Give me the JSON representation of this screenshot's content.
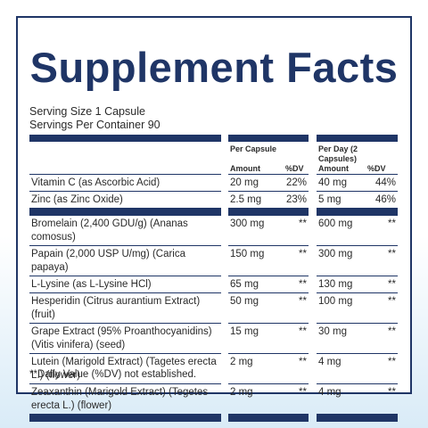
{
  "panel": {
    "title": "Supplement Facts",
    "serving_size": "Serving Size 1 Capsule",
    "servings_per_container": "Servings Per Container 90",
    "column_groups": [
      "Per Capsule",
      "Per Day (2 Capsules)"
    ],
    "column_headers": [
      "Amount",
      "%DV",
      "Amount",
      "%DV"
    ],
    "sections": [
      [
        [
          "Vitamin C (as Ascorbic Acid)",
          "20 mg",
          "22%",
          "40 mg",
          "44%"
        ],
        [
          "Zinc (as Zinc Oxide)",
          "2.5 mg",
          "23%",
          "5 mg",
          "46%"
        ]
      ],
      [
        [
          "Bromelain (2,400 GDU/g) (Ananas comosus)",
          "300 mg",
          "**",
          "600 mg",
          "**"
        ],
        [
          "Papain (2,000 USP U/mg) (Carica papaya)",
          "150 mg",
          "**",
          "300 mg",
          "**"
        ],
        [
          "L-Lysine (as L-Lysine HCl)",
          "65 mg",
          "**",
          "130 mg",
          "**"
        ],
        [
          "Hesperidin (Citrus aurantium Extract) (fruit)",
          "50 mg",
          "**",
          "100 mg",
          "**"
        ],
        [
          "Grape Extract (95% Proanthocyanidins) (Vitis vinifera) (seed)",
          "15 mg",
          "**",
          "30 mg",
          "**"
        ],
        [
          "Lutein (Marigold Extract) (Tagetes erecta L.) (flower)",
          "2 mg",
          "**",
          "4 mg",
          "**"
        ],
        [
          "Zeaxanthin (Marigold Extract) (Tegetes erecta L.) (flower)",
          "2 mg",
          "**",
          "4 mg",
          "**"
        ]
      ]
    ],
    "footnote": "**Daily Value (%DV) not established."
  }
}
